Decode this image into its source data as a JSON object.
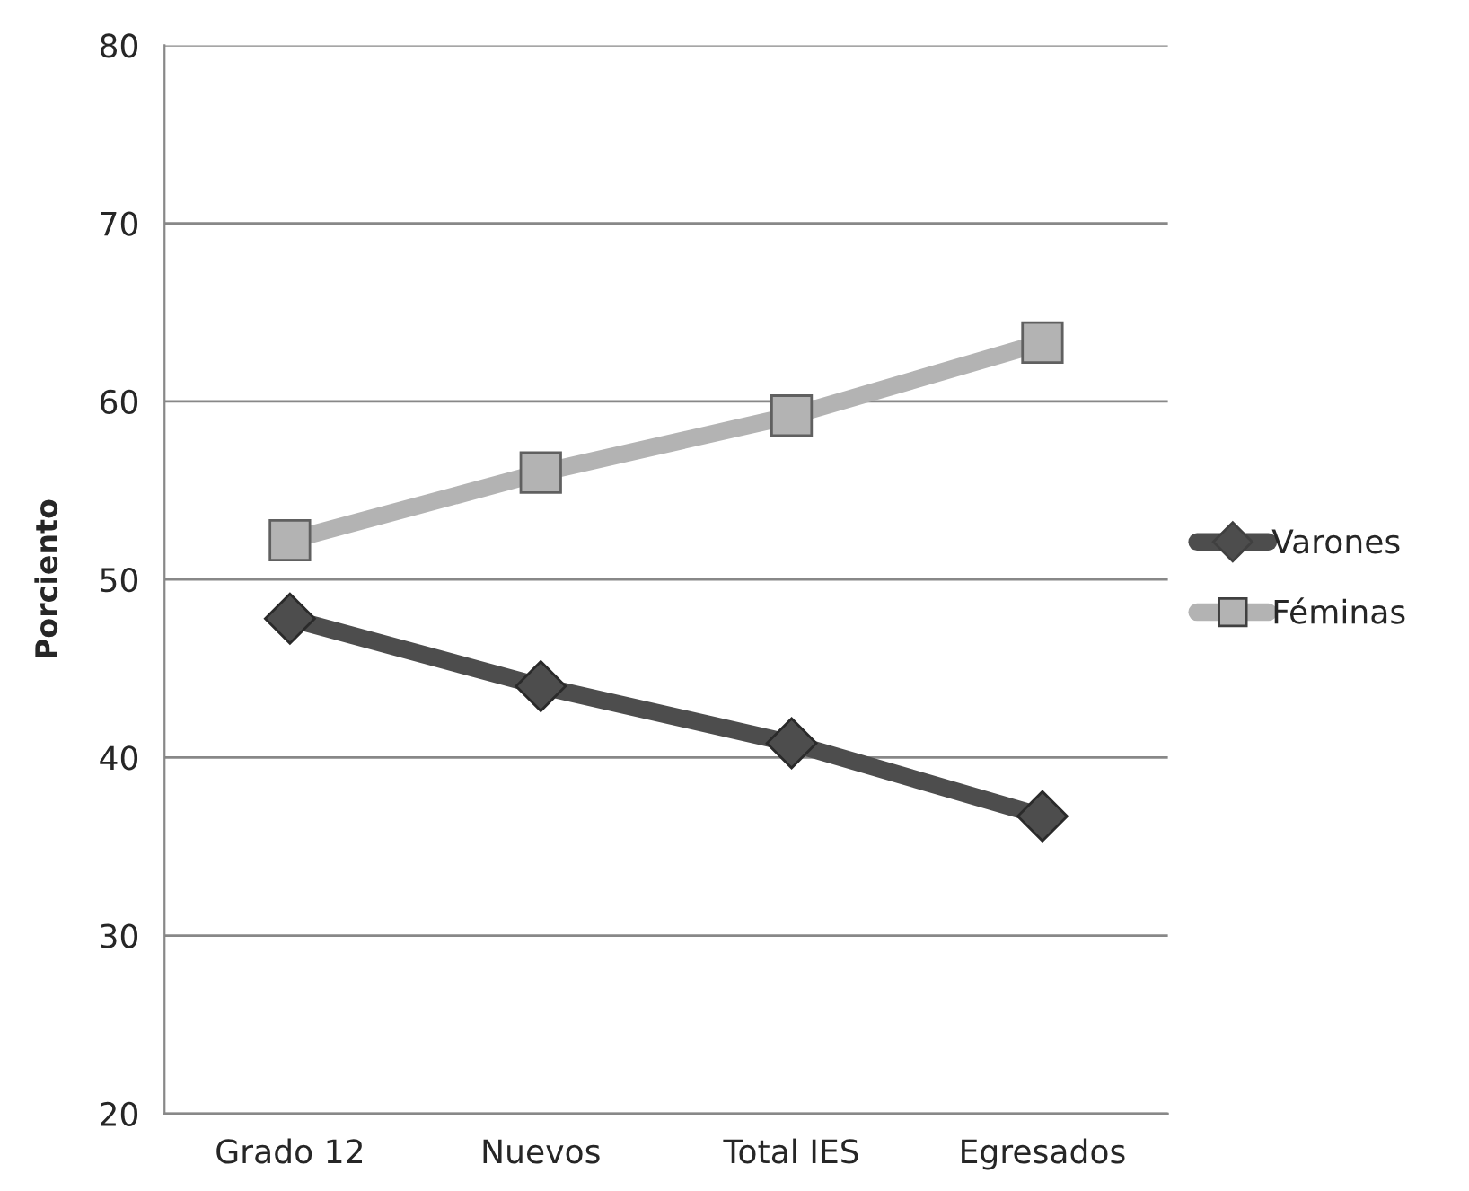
{
  "chart_data": {
    "type": "line",
    "ylabel": "Porciento",
    "categories": [
      "Grado 12",
      "Nuevos",
      "Total IES",
      "Egresados"
    ],
    "series": [
      {
        "name": "Varones",
        "color": "#4d4d4d",
        "marker": "diamond",
        "values": [
          47.8,
          44.0,
          40.8,
          36.7
        ]
      },
      {
        "name": "Féminas",
        "color": "#b3b3b3",
        "marker": "square",
        "values": [
          52.2,
          56.0,
          59.2,
          63.3
        ]
      }
    ],
    "ylim": [
      20,
      80
    ],
    "yticks": [
      20,
      30,
      40,
      50,
      60,
      70,
      80
    ],
    "grid": "y",
    "legend": "right",
    "line_style": "solid"
  }
}
